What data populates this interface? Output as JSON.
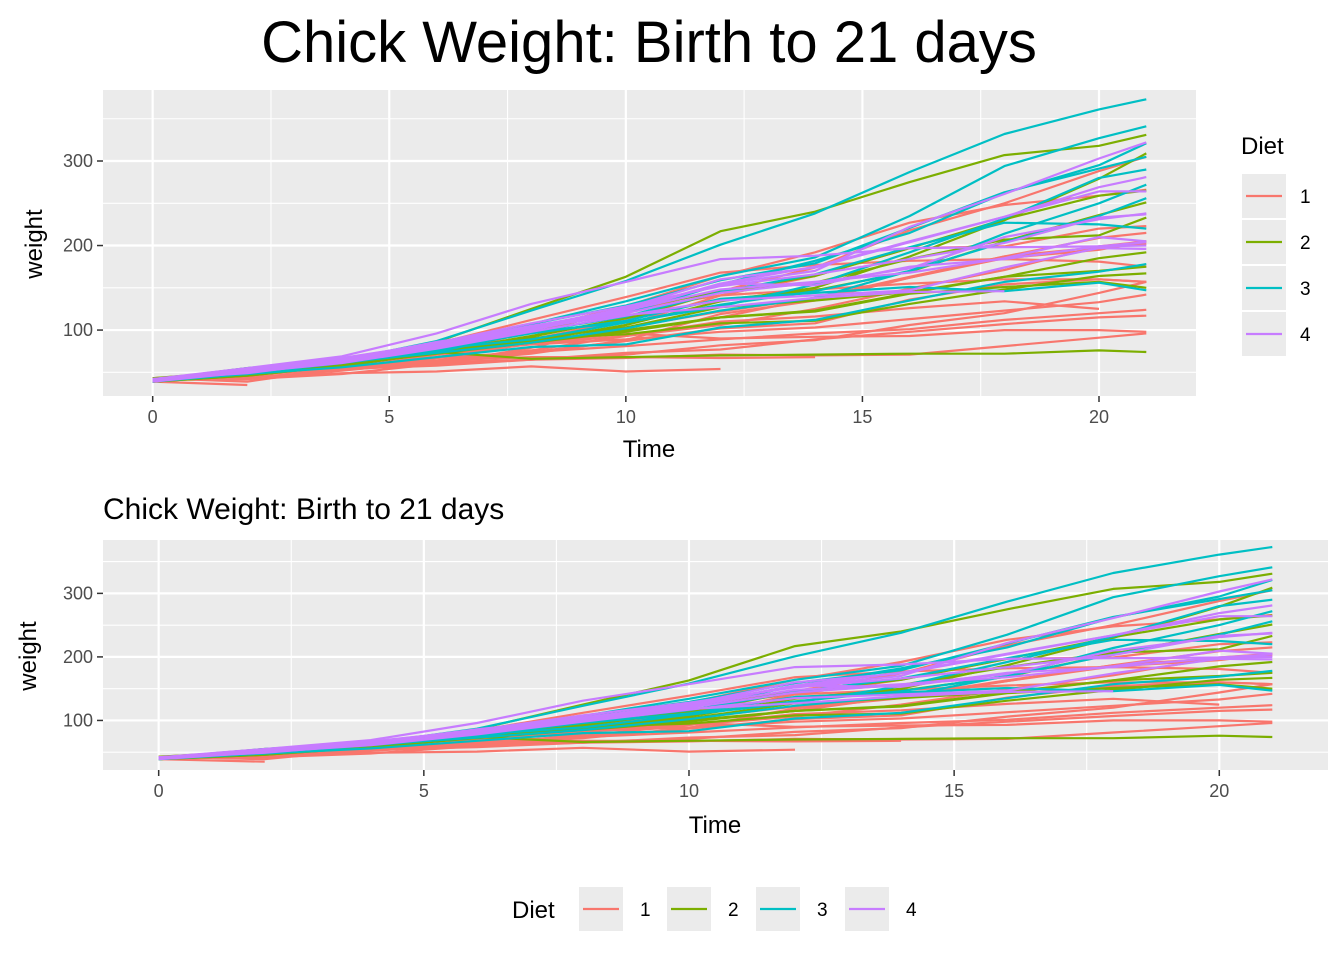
{
  "chart_data": [
    {
      "type": "line",
      "title": "Chick Weight: Birth to 21 days",
      "xlabel": "Time",
      "ylabel": "weight",
      "xlim": [
        -1.05,
        22.05
      ],
      "ylim": [
        22,
        384
      ],
      "x_ticks": [
        0,
        5,
        10,
        15,
        20
      ],
      "y_ticks": [
        100,
        200,
        300
      ],
      "grid": true,
      "legend": {
        "title": "Diet",
        "position": "right",
        "entries": [
          "1",
          "2",
          "3",
          "4"
        ]
      }
    },
    {
      "type": "line",
      "title": "Chick Weight: Birth to 21 days",
      "xlabel": "Time",
      "ylabel": "weight",
      "xlim": [
        -1.05,
        22.05
      ],
      "ylim": [
        22,
        384
      ],
      "x_ticks": [
        0,
        5,
        10,
        15,
        20
      ],
      "y_ticks": [
        100,
        200,
        300
      ],
      "grid": true,
      "legend": {
        "title": "Diet",
        "position": "bottom",
        "entries": [
          "1",
          "2",
          "3",
          "4"
        ]
      }
    }
  ],
  "series_data": {
    "x": [
      0,
      2,
      4,
      6,
      8,
      10,
      12,
      14,
      16,
      18,
      20,
      21
    ],
    "diet_colors": {
      "1": "#F8766D",
      "2": "#7CAE00",
      "3": "#00BFC4",
      "4": "#C77CFF"
    },
    "chicks": [
      {
        "diet": "1",
        "values": [
          42,
          51,
          59,
          64,
          76,
          93,
          106,
          125,
          149,
          171,
          199,
          205
        ]
      },
      {
        "diet": "1",
        "values": [
          40,
          49,
          58,
          72,
          84,
          103,
          122,
          138,
          162,
          187,
          209,
          215
        ]
      },
      {
        "diet": "1",
        "values": [
          43,
          39,
          55,
          67,
          84,
          99,
          115,
          138,
          163,
          187,
          198,
          202
        ]
      },
      {
        "diet": "1",
        "values": [
          42,
          49,
          56,
          67,
          74,
          87,
          102,
          108,
          136,
          154,
          160,
          157
        ]
      },
      {
        "diet": "1",
        "values": [
          41,
          42,
          48,
          60,
          79,
          106,
          141,
          164,
          197,
          199,
          220,
          223
        ]
      },
      {
        "diet": "1",
        "values": [
          41,
          49,
          59,
          74,
          97,
          124,
          141,
          148,
          155,
          160,
          160,
          157
        ]
      },
      {
        "diet": "1",
        "values": [
          41,
          49,
          57,
          71,
          89,
          112,
          146,
          174,
          218,
          250,
          288,
          305
        ]
      },
      {
        "diet": "1",
        "values": [
          42,
          50,
          61,
          71,
          84,
          93,
          110,
          116,
          126,
          134,
          125
        ]
      },
      {
        "diet": "1",
        "values": [
          42,
          51,
          59,
          68,
          85,
          96,
          90,
          92,
          93,
          100,
          100,
          98
        ]
      },
      {
        "diet": "1",
        "values": [
          41,
          44,
          52,
          63,
          74,
          81,
          89,
          96,
          101,
          112,
          120,
          124
        ]
      },
      {
        "diet": "1",
        "values": [
          43,
          51,
          63,
          84,
          112,
          139,
          168,
          177,
          182,
          184,
          181,
          175
        ]
      },
      {
        "diet": "1",
        "values": [
          41,
          49,
          56,
          62,
          72,
          88,
          119,
          135,
          162,
          185,
          195,
          205
        ]
      },
      {
        "diet": "1",
        "values": [
          41,
          48,
          53,
          60,
          65,
          67,
          71,
          70,
          71,
          81,
          91,
          96
        ]
      },
      {
        "diet": "1",
        "values": [
          41,
          49,
          62,
          79,
          101,
          128,
          164,
          192,
          227,
          248,
          259,
          266
        ]
      },
      {
        "diet": "1",
        "values": [
          41,
          49,
          56,
          64,
          68,
          68,
          67,
          68
        ]
      },
      {
        "diet": "1",
        "values": [
          41,
          45,
          49,
          51,
          57,
          51,
          54
        ]
      },
      {
        "diet": "1",
        "values": [
          42,
          51,
          61,
          72,
          83,
          89,
          98,
          103,
          113,
          123,
          133,
          142
        ]
      },
      {
        "diet": "1",
        "values": [
          39,
          35
        ]
      },
      {
        "diet": "1",
        "values": [
          43,
          48,
          55,
          62,
          65,
          71,
          82,
          88,
          106,
          120,
          144,
          157
        ]
      },
      {
        "diet": "1",
        "values": [
          41,
          47,
          54,
          58,
          65,
          73,
          77,
          89,
          98,
          107,
          115,
          117
        ]
      },
      {
        "diet": "2",
        "values": [
          40,
          50,
          62,
          86,
          125,
          163,
          217,
          240,
          275,
          307,
          318,
          331
        ]
      },
      {
        "diet": "2",
        "values": [
          41,
          55,
          64,
          77,
          90,
          95,
          108,
          111,
          131,
          148,
          164,
          167
        ]
      },
      {
        "diet": "2",
        "values": [
          43,
          52,
          61,
          73,
          90,
          103,
          127,
          135,
          145,
          163,
          170,
          175
        ]
      },
      {
        "diet": "2",
        "values": [
          42,
          52,
          58,
          74,
          66,
          68,
          70,
          71,
          72,
          72,
          76,
          74
        ]
      },
      {
        "diet": "2",
        "values": [
          40,
          49,
          62,
          78,
          102,
          124,
          146,
          164,
          197,
          231,
          259,
          265
        ]
      },
      {
        "diet": "2",
        "values": [
          42,
          48,
          57,
          74,
          93,
          114,
          136,
          147,
          169,
          205,
          236,
          251
        ]
      },
      {
        "diet": "2",
        "values": [
          39,
          46,
          58,
          73,
          87,
          100,
          115,
          123,
          144,
          163,
          185,
          192
        ]
      },
      {
        "diet": "2",
        "values": [
          39,
          46,
          58,
          73,
          92,
          114,
          145,
          156,
          184,
          207,
          212,
          233
        ]
      },
      {
        "diet": "2",
        "values": [
          39,
          48,
          59,
          74,
          87,
          106,
          134,
          150,
          187,
          230,
          279,
          309
        ]
      },
      {
        "diet": "2",
        "values": [
          42,
          48,
          59,
          72,
          85,
          98,
          115,
          122,
          143,
          151,
          157,
          150
        ]
      },
      {
        "diet": "3",
        "values": [
          42,
          53,
          62,
          73,
          85,
          102,
          123,
          138,
          170,
          204,
          235,
          256
        ]
      },
      {
        "diet": "3",
        "values": [
          41,
          49,
          65,
          82,
          107,
          129,
          159,
          179,
          221,
          263,
          291,
          305
        ]
      },
      {
        "diet": "3",
        "values": [
          39,
          50,
          63,
          77,
          96,
          111,
          137,
          144,
          151,
          146,
          156,
          147
        ]
      },
      {
        "diet": "3",
        "values": [
          41,
          49,
          63,
          85,
          107,
          134,
          164,
          186,
          235,
          294,
          327,
          341
        ]
      },
      {
        "diet": "3",
        "values": [
          41,
          53,
          64,
          87,
          123,
          158,
          201,
          238,
          287,
          332,
          361,
          373
        ]
      },
      {
        "diet": "3",
        "values": [
          39,
          48,
          61,
          76,
          98,
          116,
          145,
          166,
          198,
          227,
          225,
          220
        ]
      },
      {
        "diet": "3",
        "values": [
          41,
          48,
          56,
          68,
          80,
          83,
          103,
          112,
          135,
          157,
          169,
          178
        ]
      },
      {
        "diet": "3",
        "values": [
          41,
          49,
          61,
          74,
          98,
          109,
          128,
          154,
          192,
          232,
          280,
          290
        ]
      },
      {
        "diet": "3",
        "values": [
          42,
          50,
          61,
          78,
          89,
          109,
          130,
          146,
          170,
          214,
          250,
          272
        ]
      },
      {
        "diet": "3",
        "values": [
          41,
          55,
          66,
          79,
          101,
          120,
          154,
          182,
          215,
          262,
          295,
          321
        ]
      },
      {
        "diet": "4",
        "values": [
          42,
          51,
          66,
          85,
          103,
          124,
          155,
          153,
          175,
          184,
          199,
          204
        ]
      },
      {
        "diet": "4",
        "values": [
          42,
          49,
          63,
          84,
          103,
          126,
          160,
          174,
          204,
          234,
          269,
          281
        ]
      },
      {
        "diet": "4",
        "values": [
          42,
          55,
          69,
          96,
          131,
          157,
          184,
          188,
          197,
          198,
          199,
          200
        ]
      },
      {
        "diet": "4",
        "values": [
          42,
          51,
          65,
          86,
          103,
          118,
          127,
          138,
          145,
          146
        ]
      },
      {
        "diet": "4",
        "values": [
          41,
          50,
          61,
          78,
          98,
          117,
          135,
          141,
          147,
          174,
          197,
          196
        ]
      },
      {
        "diet": "4",
        "values": [
          40,
          52,
          62,
          82,
          101,
          120,
          144,
          156,
          173,
          210,
          231,
          238
        ]
      },
      {
        "diet": "4",
        "values": [
          41,
          53,
          66,
          79,
          100,
          123,
          148,
          157,
          168,
          185,
          210,
          205
        ]
      },
      {
        "diet": "4",
        "values": [
          39,
          50,
          62,
          80,
          104,
          125,
          154,
          170,
          222,
          261,
          303,
          322
        ]
      },
      {
        "diet": "4",
        "values": [
          40,
          53,
          64,
          85,
          108,
          128,
          152,
          166,
          184,
          203,
          233,
          237
        ]
      },
      {
        "diet": "4",
        "values": [
          41,
          54,
          67,
          84,
          105,
          122,
          155,
          175,
          205,
          234,
          264,
          264
        ]
      }
    ]
  }
}
